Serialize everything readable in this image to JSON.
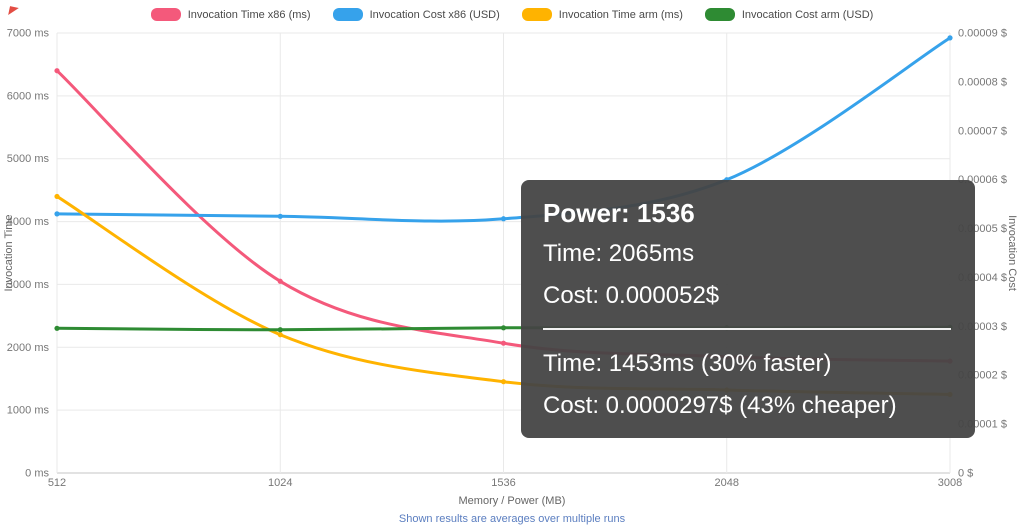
{
  "tooltip": {
    "title": "Power: 1536",
    "x86_time": "Time: 2065ms",
    "x86_cost": "Cost: 0.000052$",
    "arm_time": "Time: 1453ms (30% faster)",
    "arm_cost": "Cost: 0.0000297$ (43% cheaper)"
  },
  "chart_data": {
    "type": "line",
    "categories": [
      "512",
      "1024",
      "1536",
      "2048",
      "3008"
    ],
    "series": [
      {
        "name": "Invocation Time x86 (ms)",
        "axis": "left",
        "color": "#f4597b",
        "values": [
          6400,
          3050,
          2065,
          1850,
          1780
        ]
      },
      {
        "name": "Invocation Cost x86 (USD)",
        "axis": "right",
        "color": "#36a2eb",
        "values": [
          5.3e-05,
          5.25e-05,
          5.2e-05,
          6e-05,
          8.9e-05
        ]
      },
      {
        "name": "Invocation Time arm (ms)",
        "axis": "left",
        "color": "#ffb300",
        "values": [
          4400,
          2200,
          1453,
          1320,
          1250
        ]
      },
      {
        "name": "Invocation Cost arm (USD)",
        "axis": "right",
        "color": "#2e8b33",
        "values": [
          2.96e-05,
          2.93e-05,
          2.97e-05,
          2.97e-05,
          2.98e-05
        ]
      }
    ],
    "left_axis": {
      "label": "Invocation Time",
      "min": 0,
      "max": 7000,
      "tick_step": 1000,
      "tick_suffix": " ms"
    },
    "right_axis": {
      "label": "Invocation Cost",
      "min": 0,
      "max": 9e-05,
      "tick_step": 1e-05,
      "tick_suffix": " $"
    },
    "xlabel": "Memory / Power (MB)",
    "caption": "Shown results are averages over multiple runs",
    "legend_position": "top",
    "grid": true
  }
}
